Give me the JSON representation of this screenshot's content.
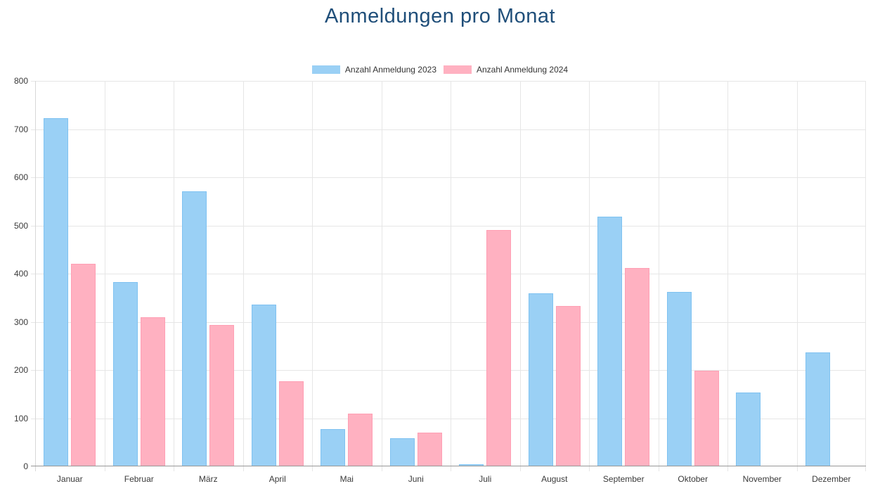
{
  "chart_data": {
    "type": "bar",
    "title": "Anmeldungen pro Monat",
    "title_color": "#1f4e79",
    "categories": [
      "Januar",
      "Februar",
      "März",
      "April",
      "Mai",
      "Juni",
      "Juli",
      "August",
      "September",
      "Oktober",
      "November",
      "Dezember"
    ],
    "series": [
      {
        "name": "Anzahl Anmeldung 2023",
        "color": "#9ad0f5",
        "border_color": "#7fc2f1",
        "values": [
          723,
          382,
          571,
          336,
          78,
          58,
          5,
          359,
          518,
          362,
          154,
          236
        ]
      },
      {
        "name": "Anzahl Anmeldung 2024",
        "color": "#ffb1c1",
        "border_color": "#ff9fb4",
        "values": [
          420,
          309,
          294,
          177,
          109,
          70,
          490,
          333,
          412,
          199,
          0,
          0
        ]
      }
    ],
    "ylim": [
      0,
      800
    ],
    "yticks": [
      0,
      100,
      200,
      300,
      400,
      500,
      600,
      700,
      800
    ],
    "xlabel": "",
    "ylabel": "",
    "grid": true,
    "legend_position": "top"
  },
  "colors": {
    "background": "#ffffff",
    "gridline": "#e6e6e6",
    "axis_line": "#979797",
    "tick_label": "#3a3a3a",
    "legend_label": "#333333"
  }
}
